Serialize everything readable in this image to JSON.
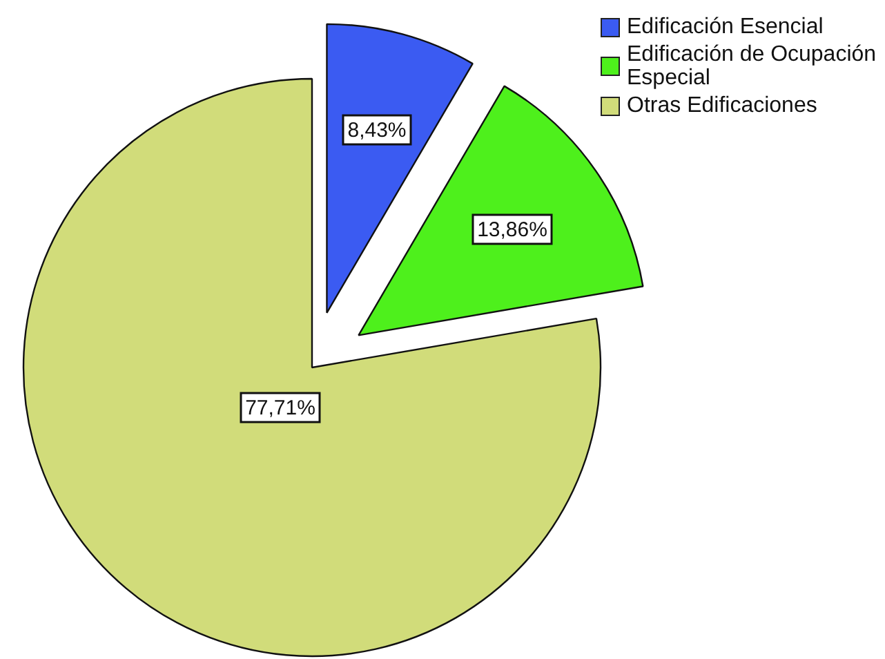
{
  "chart_data": {
    "type": "pie",
    "categories": [
      "Edificación Esencial",
      "Edificación de Ocupación Especial",
      "Otras Edificaciones"
    ],
    "values": [
      8.43,
      13.86,
      77.71
    ],
    "colors": [
      "#3b5bf2",
      "#4ef01c",
      "#d1dc7a"
    ],
    "value_labels": [
      "8,43%",
      "13,86%",
      "77,71%"
    ],
    "legend": "top right"
  }
}
